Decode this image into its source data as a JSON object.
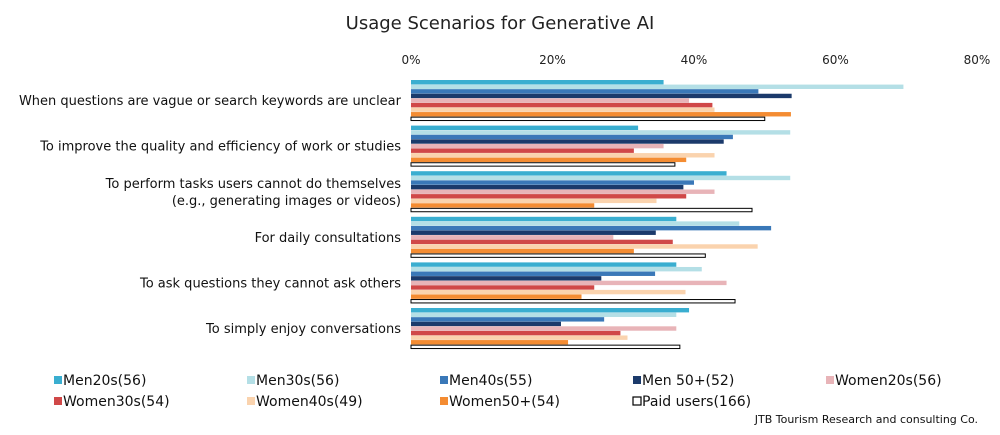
{
  "chart_data": {
    "type": "bar",
    "orientation": "horizontal",
    "title": "Usage Scenarios for Generative AI",
    "xlabel": "",
    "ylabel": "",
    "xlim": [
      0,
      80
    ],
    "grid": false,
    "x_ticks": [
      "0%",
      "20%",
      "40%",
      "60%",
      "80%"
    ],
    "x_tick_values": [
      0,
      20,
      40,
      60,
      80
    ],
    "categories": [
      [
        "When questions are vague or search keywords are unclear"
      ],
      [
        "To improve the quality and efficiency of work or studies"
      ],
      [
        "To perform tasks users cannot do themselves",
        "(e.g., generating images or videos)"
      ],
      [
        "For daily consultations"
      ],
      [
        "To ask questions they cannot ask others"
      ],
      [
        "To simply enjoy conversations"
      ]
    ],
    "series": [
      {
        "name": "Men20s(56)",
        "color": "#3aaed0",
        "values": [
          35.7,
          32.1,
          44.6,
          37.5,
          37.5,
          39.3
        ]
      },
      {
        "name": "Men30s(56)",
        "color": "#b4dfe6",
        "values": [
          69.6,
          53.6,
          53.6,
          46.4,
          41.1,
          37.5
        ]
      },
      {
        "name": "Men40s(55)",
        "color": "#3a78b8",
        "values": [
          49.1,
          45.5,
          40.0,
          50.9,
          34.5,
          27.3
        ]
      },
      {
        "name": "Men 50+(52)",
        "color": "#1b3a6b",
        "values": [
          53.8,
          44.2,
          38.5,
          34.6,
          26.9,
          21.2
        ]
      },
      {
        "name": "Women20s(56)",
        "color": "#e8b4b8",
        "values": [
          39.3,
          35.7,
          42.9,
          28.6,
          44.6,
          37.5
        ]
      },
      {
        "name": "Women30s(54)",
        "color": "#d04848",
        "values": [
          42.6,
          31.5,
          38.9,
          37.0,
          25.9,
          29.6
        ]
      },
      {
        "name": "Women40s(49)",
        "color": "#fad3ae",
        "values": [
          42.9,
          42.9,
          34.7,
          49.0,
          38.8,
          30.6
        ]
      },
      {
        "name": "Women50+(54)",
        "color": "#f48c32",
        "values": [
          53.7,
          38.9,
          25.9,
          31.5,
          24.1,
          22.2
        ]
      },
      {
        "name": "Paid users(166)",
        "color": "#ffffff",
        "stroke": "#000000",
        "values": [
          50.0,
          37.3,
          48.2,
          41.6,
          45.8,
          38.0
        ]
      }
    ],
    "legend_position": "bottom",
    "legend": [
      "Men20s(56)",
      "Men30s(56)",
      "Men40s(55)",
      "Men 50+(52)",
      "Women20s(56)",
      "Women30s(54)",
      "Women40s(49)",
      "Women50+(54)",
      "Paid users(166)"
    ]
  },
  "source": "JTB Tourism Research and consulting Co."
}
